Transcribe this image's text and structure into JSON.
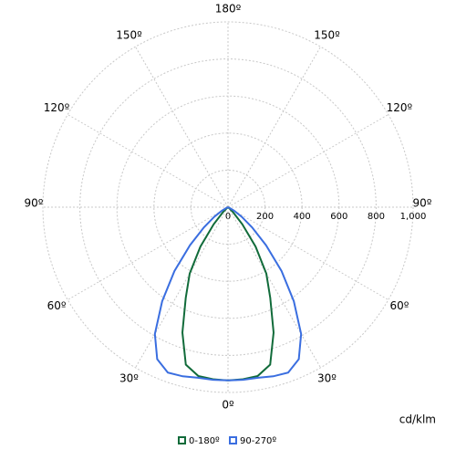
{
  "chart_data": {
    "type": "polar",
    "unit_label": "cd/klm",
    "gamma": [
      0,
      5,
      10,
      15,
      20,
      25,
      30,
      35,
      40,
      45,
      50,
      55,
      60,
      65,
      70,
      75,
      80,
      85,
      90
    ],
    "series": [
      {
        "name": "0-180º",
        "color": "#116b3a",
        "values": [
          935,
          932,
          925,
          880,
          720,
          540,
          414,
          260,
          120,
          40,
          10,
          2,
          0,
          0,
          0,
          0,
          0,
          0,
          0
        ]
      },
      {
        "name": "90-270º",
        "color": "#3a6ee0",
        "values": [
          935,
          935,
          935,
          945,
          950,
          905,
          790,
          620,
          450,
          290,
          170,
          90,
          40,
          10,
          0,
          0,
          0,
          0,
          0
        ]
      }
    ],
    "rlim": [
      0,
      1000
    ],
    "rticks": [
      0,
      200,
      400,
      600,
      800,
      {
        "value": 1000,
        "label": "1,000"
      }
    ],
    "angle_ticks": [
      {
        "value": 0,
        "label": "0º"
      },
      {
        "value": 30,
        "label": "30º"
      },
      {
        "value": 60,
        "label": "60º"
      },
      {
        "value": 90,
        "label": "90º"
      },
      {
        "value": 120,
        "label": "120º"
      },
      {
        "value": 150,
        "label": "150º"
      },
      {
        "value": 180,
        "label": "180º"
      }
    ],
    "grid": true
  }
}
